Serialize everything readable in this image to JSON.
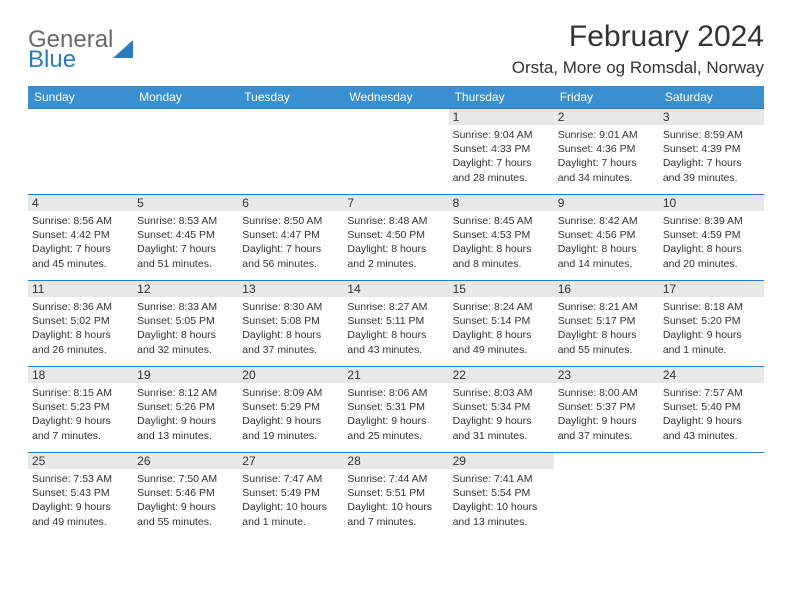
{
  "brand": {
    "part1": "General",
    "part2": "Blue"
  },
  "title": "February 2024",
  "location": "Orsta, More og Romsdal, Norway",
  "colors": {
    "header_bg": "#3a8fd0",
    "header_text": "#ffffff",
    "rule": "#2b7bbf",
    "daynum_bg": "#e8e8e8",
    "body_text": "#333333",
    "brand_gray": "#6a6a6a",
    "brand_blue": "#2b7bbf",
    "page_bg": "#ffffff"
  },
  "typography": {
    "title_fontsize": 30,
    "location_fontsize": 17,
    "header_fontsize": 12,
    "cell_fontsize": 10.5,
    "logo_fontsize": 24
  },
  "weekdays": [
    "Sunday",
    "Monday",
    "Tuesday",
    "Wednesday",
    "Thursday",
    "Friday",
    "Saturday"
  ],
  "weeks": [
    [
      null,
      null,
      null,
      null,
      {
        "n": "1",
        "sr": "Sunrise: 9:04 AM",
        "ss": "Sunset: 4:33 PM",
        "d1": "Daylight: 7 hours",
        "d2": "and 28 minutes."
      },
      {
        "n": "2",
        "sr": "Sunrise: 9:01 AM",
        "ss": "Sunset: 4:36 PM",
        "d1": "Daylight: 7 hours",
        "d2": "and 34 minutes."
      },
      {
        "n": "3",
        "sr": "Sunrise: 8:59 AM",
        "ss": "Sunset: 4:39 PM",
        "d1": "Daylight: 7 hours",
        "d2": "and 39 minutes."
      }
    ],
    [
      {
        "n": "4",
        "sr": "Sunrise: 8:56 AM",
        "ss": "Sunset: 4:42 PM",
        "d1": "Daylight: 7 hours",
        "d2": "and 45 minutes."
      },
      {
        "n": "5",
        "sr": "Sunrise: 8:53 AM",
        "ss": "Sunset: 4:45 PM",
        "d1": "Daylight: 7 hours",
        "d2": "and 51 minutes."
      },
      {
        "n": "6",
        "sr": "Sunrise: 8:50 AM",
        "ss": "Sunset: 4:47 PM",
        "d1": "Daylight: 7 hours",
        "d2": "and 56 minutes."
      },
      {
        "n": "7",
        "sr": "Sunrise: 8:48 AM",
        "ss": "Sunset: 4:50 PM",
        "d1": "Daylight: 8 hours",
        "d2": "and 2 minutes."
      },
      {
        "n": "8",
        "sr": "Sunrise: 8:45 AM",
        "ss": "Sunset: 4:53 PM",
        "d1": "Daylight: 8 hours",
        "d2": "and 8 minutes."
      },
      {
        "n": "9",
        "sr": "Sunrise: 8:42 AM",
        "ss": "Sunset: 4:56 PM",
        "d1": "Daylight: 8 hours",
        "d2": "and 14 minutes."
      },
      {
        "n": "10",
        "sr": "Sunrise: 8:39 AM",
        "ss": "Sunset: 4:59 PM",
        "d1": "Daylight: 8 hours",
        "d2": "and 20 minutes."
      }
    ],
    [
      {
        "n": "11",
        "sr": "Sunrise: 8:36 AM",
        "ss": "Sunset: 5:02 PM",
        "d1": "Daylight: 8 hours",
        "d2": "and 26 minutes."
      },
      {
        "n": "12",
        "sr": "Sunrise: 8:33 AM",
        "ss": "Sunset: 5:05 PM",
        "d1": "Daylight: 8 hours",
        "d2": "and 32 minutes."
      },
      {
        "n": "13",
        "sr": "Sunrise: 8:30 AM",
        "ss": "Sunset: 5:08 PM",
        "d1": "Daylight: 8 hours",
        "d2": "and 37 minutes."
      },
      {
        "n": "14",
        "sr": "Sunrise: 8:27 AM",
        "ss": "Sunset: 5:11 PM",
        "d1": "Daylight: 8 hours",
        "d2": "and 43 minutes."
      },
      {
        "n": "15",
        "sr": "Sunrise: 8:24 AM",
        "ss": "Sunset: 5:14 PM",
        "d1": "Daylight: 8 hours",
        "d2": "and 49 minutes."
      },
      {
        "n": "16",
        "sr": "Sunrise: 8:21 AM",
        "ss": "Sunset: 5:17 PM",
        "d1": "Daylight: 8 hours",
        "d2": "and 55 minutes."
      },
      {
        "n": "17",
        "sr": "Sunrise: 8:18 AM",
        "ss": "Sunset: 5:20 PM",
        "d1": "Daylight: 9 hours",
        "d2": "and 1 minute."
      }
    ],
    [
      {
        "n": "18",
        "sr": "Sunrise: 8:15 AM",
        "ss": "Sunset: 5:23 PM",
        "d1": "Daylight: 9 hours",
        "d2": "and 7 minutes."
      },
      {
        "n": "19",
        "sr": "Sunrise: 8:12 AM",
        "ss": "Sunset: 5:26 PM",
        "d1": "Daylight: 9 hours",
        "d2": "and 13 minutes."
      },
      {
        "n": "20",
        "sr": "Sunrise: 8:09 AM",
        "ss": "Sunset: 5:29 PM",
        "d1": "Daylight: 9 hours",
        "d2": "and 19 minutes."
      },
      {
        "n": "21",
        "sr": "Sunrise: 8:06 AM",
        "ss": "Sunset: 5:31 PM",
        "d1": "Daylight: 9 hours",
        "d2": "and 25 minutes."
      },
      {
        "n": "22",
        "sr": "Sunrise: 8:03 AM",
        "ss": "Sunset: 5:34 PM",
        "d1": "Daylight: 9 hours",
        "d2": "and 31 minutes."
      },
      {
        "n": "23",
        "sr": "Sunrise: 8:00 AM",
        "ss": "Sunset: 5:37 PM",
        "d1": "Daylight: 9 hours",
        "d2": "and 37 minutes."
      },
      {
        "n": "24",
        "sr": "Sunrise: 7:57 AM",
        "ss": "Sunset: 5:40 PM",
        "d1": "Daylight: 9 hours",
        "d2": "and 43 minutes."
      }
    ],
    [
      {
        "n": "25",
        "sr": "Sunrise: 7:53 AM",
        "ss": "Sunset: 5:43 PM",
        "d1": "Daylight: 9 hours",
        "d2": "and 49 minutes."
      },
      {
        "n": "26",
        "sr": "Sunrise: 7:50 AM",
        "ss": "Sunset: 5:46 PM",
        "d1": "Daylight: 9 hours",
        "d2": "and 55 minutes."
      },
      {
        "n": "27",
        "sr": "Sunrise: 7:47 AM",
        "ss": "Sunset: 5:49 PM",
        "d1": "Daylight: 10 hours",
        "d2": "and 1 minute."
      },
      {
        "n": "28",
        "sr": "Sunrise: 7:44 AM",
        "ss": "Sunset: 5:51 PM",
        "d1": "Daylight: 10 hours",
        "d2": "and 7 minutes."
      },
      {
        "n": "29",
        "sr": "Sunrise: 7:41 AM",
        "ss": "Sunset: 5:54 PM",
        "d1": "Daylight: 10 hours",
        "d2": "and 13 minutes."
      },
      null,
      null
    ]
  ]
}
